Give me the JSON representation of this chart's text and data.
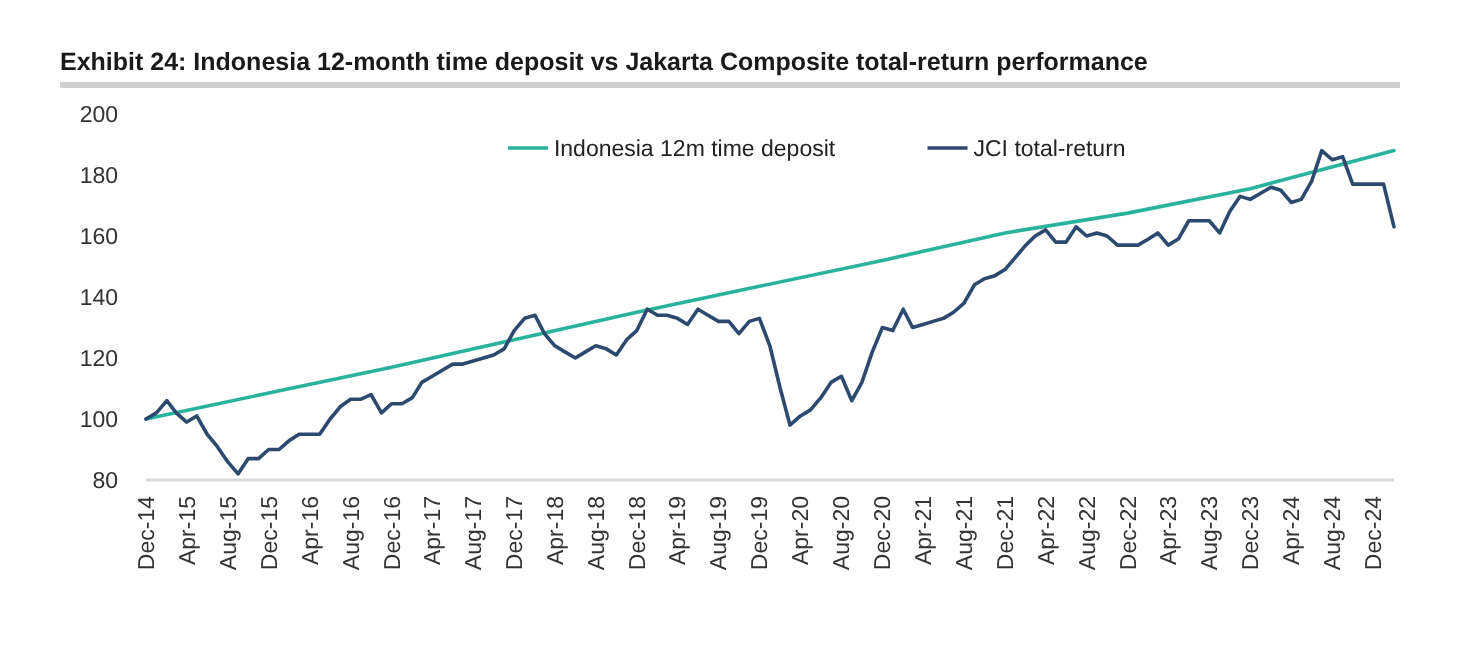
{
  "chart_data": {
    "type": "line",
    "title": "Exhibit 24: Indonesia 12-month time deposit vs Jakarta Composite total-return performance",
    "x": [
      "2014-12",
      "2015-01",
      "2015-02",
      "2015-03",
      "2015-04",
      "2015-05",
      "2015-06",
      "2015-07",
      "2015-08",
      "2015-09",
      "2015-10",
      "2015-11",
      "2015-12",
      "2016-01",
      "2016-02",
      "2016-03",
      "2016-04",
      "2016-05",
      "2016-06",
      "2016-07",
      "2016-08",
      "2016-09",
      "2016-10",
      "2016-11",
      "2016-12",
      "2017-01",
      "2017-02",
      "2017-03",
      "2017-04",
      "2017-05",
      "2017-06",
      "2017-07",
      "2017-08",
      "2017-09",
      "2017-10",
      "2017-11",
      "2017-12",
      "2018-01",
      "2018-02",
      "2018-03",
      "2018-04",
      "2018-05",
      "2018-06",
      "2018-07",
      "2018-08",
      "2018-09",
      "2018-10",
      "2018-11",
      "2018-12",
      "2019-01",
      "2019-02",
      "2019-03",
      "2019-04",
      "2019-05",
      "2019-06",
      "2019-07",
      "2019-08",
      "2019-09",
      "2019-10",
      "2019-11",
      "2019-12",
      "2020-01",
      "2020-02",
      "2020-03",
      "2020-04",
      "2020-05",
      "2020-06",
      "2020-07",
      "2020-08",
      "2020-09",
      "2020-10",
      "2020-11",
      "2020-12",
      "2021-01",
      "2021-02",
      "2021-03",
      "2021-04",
      "2021-05",
      "2021-06",
      "2021-07",
      "2021-08",
      "2021-09",
      "2021-10",
      "2021-11",
      "2021-12",
      "2022-01",
      "2022-02",
      "2022-03",
      "2022-04",
      "2022-05",
      "2022-06",
      "2022-07",
      "2022-08",
      "2022-09",
      "2022-10",
      "2022-11",
      "2022-12",
      "2023-01",
      "2023-02",
      "2023-03",
      "2023-04",
      "2023-05",
      "2023-06",
      "2023-07",
      "2023-08",
      "2023-09",
      "2023-10",
      "2023-11",
      "2023-12",
      "2024-01",
      "2024-02",
      "2024-03",
      "2024-04",
      "2024-05",
      "2024-06",
      "2024-07",
      "2024-08",
      "2024-09",
      "2024-10",
      "2024-11",
      "2024-12",
      "2025-01",
      "2025-02"
    ],
    "series": [
      {
        "name": "Indonesia 12m time deposit",
        "color": "#2ab39c",
        "x": [
          "2014-12",
          "2015-12",
          "2016-12",
          "2017-12",
          "2018-12",
          "2019-12",
          "2020-12",
          "2021-12",
          "2022-12",
          "2023-12",
          "2025-02"
        ],
        "values": [
          100,
          108.5,
          117,
          126,
          135,
          143.5,
          152,
          161,
          167.5,
          175.5,
          188
        ]
      },
      {
        "name": "JCI total-return",
        "color": "#2c4a6e",
        "values": [
          100,
          102,
          106,
          102,
          99,
          101,
          95,
          91,
          86,
          82,
          87,
          87,
          90,
          90,
          93,
          95,
          95,
          95,
          100,
          104,
          106.5,
          106.5,
          108,
          102,
          105,
          105,
          107,
          112,
          114,
          116,
          118,
          118,
          119,
          120,
          121,
          123,
          129,
          133,
          134,
          128,
          124,
          122,
          120,
          122,
          124,
          123,
          121,
          126,
          129,
          136,
          134,
          134,
          133,
          131,
          136,
          134,
          132,
          132,
          128,
          132,
          133,
          124,
          110,
          98,
          101,
          103,
          107,
          112,
          114,
          106,
          112,
          122,
          130,
          129,
          136,
          130,
          131,
          132,
          133,
          135,
          138,
          144,
          146,
          147,
          149,
          153,
          157,
          160,
          162,
          158,
          158,
          163,
          160,
          161,
          160,
          157,
          157,
          157,
          159,
          161,
          157,
          159,
          165,
          165,
          165,
          161,
          168,
          173,
          172,
          174,
          176,
          175,
          171,
          172,
          178,
          188,
          185,
          186,
          177,
          177,
          177,
          177,
          163
        ]
      }
    ],
    "xlim": [
      "2014-12",
      "2025-02"
    ],
    "xticks": [
      {
        "value": "2014-12",
        "label": "Dec-14"
      },
      {
        "value": "2015-04",
        "label": "Apr-15"
      },
      {
        "value": "2015-08",
        "label": "Aug-15"
      },
      {
        "value": "2015-12",
        "label": "Dec-15"
      },
      {
        "value": "2016-04",
        "label": "Apr-16"
      },
      {
        "value": "2016-08",
        "label": "Aug-16"
      },
      {
        "value": "2016-12",
        "label": "Dec-16"
      },
      {
        "value": "2017-04",
        "label": "Apr-17"
      },
      {
        "value": "2017-08",
        "label": "Aug-17"
      },
      {
        "value": "2017-12",
        "label": "Dec-17"
      },
      {
        "value": "2018-04",
        "label": "Apr-18"
      },
      {
        "value": "2018-08",
        "label": "Aug-18"
      },
      {
        "value": "2018-12",
        "label": "Dec-18"
      },
      {
        "value": "2019-04",
        "label": "Apr-19"
      },
      {
        "value": "2019-08",
        "label": "Aug-19"
      },
      {
        "value": "2019-12",
        "label": "Dec-19"
      },
      {
        "value": "2020-04",
        "label": "Apr-20"
      },
      {
        "value": "2020-08",
        "label": "Aug-20"
      },
      {
        "value": "2020-12",
        "label": "Dec-20"
      },
      {
        "value": "2021-04",
        "label": "Apr-21"
      },
      {
        "value": "2021-08",
        "label": "Aug-21"
      },
      {
        "value": "2021-12",
        "label": "Dec-21"
      },
      {
        "value": "2022-04",
        "label": "Apr-22"
      },
      {
        "value": "2022-08",
        "label": "Aug-22"
      },
      {
        "value": "2022-12",
        "label": "Dec-22"
      },
      {
        "value": "2023-04",
        "label": "Apr-23"
      },
      {
        "value": "2023-08",
        "label": "Aug-23"
      },
      {
        "value": "2023-12",
        "label": "Dec-23"
      },
      {
        "value": "2024-04",
        "label": "Apr-24"
      },
      {
        "value": "2024-08",
        "label": "Aug-24"
      },
      {
        "value": "2024-12",
        "label": "Dec-24"
      }
    ],
    "ylim": [
      80,
      200
    ],
    "yticks": [
      80,
      100,
      120,
      140,
      160,
      180,
      200
    ],
    "grid": false,
    "legend": "top",
    "marker": "none",
    "line_style": "solid"
  }
}
